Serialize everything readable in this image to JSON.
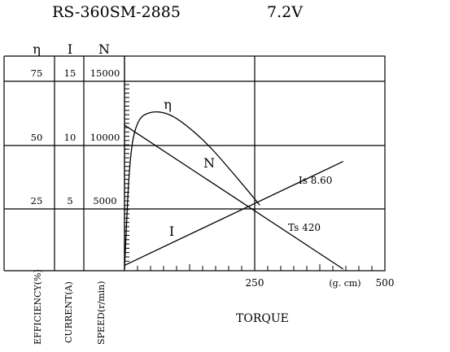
{
  "header": {
    "title": "RS-360SM-2885",
    "voltage": "7.2V"
  },
  "chart_data": {
    "type": "line",
    "title": "RS-360SM-2885",
    "subtitle": "7.2V",
    "xlabel": "TORQUE",
    "x_unit": "(g. cm)",
    "xlim": [
      0,
      500
    ],
    "x_ticks": [
      "250",
      "500"
    ],
    "y_axes": [
      {
        "symbol": "η",
        "label": "EFFICIENCY(%)",
        "ticks": [
          "75",
          "50",
          "25"
        ],
        "max": 75
      },
      {
        "symbol": "I",
        "label": "CURRENT(A)",
        "ticks": [
          "15",
          "10",
          "5"
        ],
        "max": 15
      },
      {
        "symbol": "N",
        "label": "SPEED(r/min)",
        "ticks": [
          "15000",
          "10000",
          "5000"
        ],
        "max": 15000
      }
    ],
    "grid": true,
    "series": [
      {
        "name": "η",
        "axis": "η",
        "x": [
          0,
          10,
          25,
          50,
          80,
          110,
          160,
          210,
          260
        ],
        "y": [
          0,
          46,
          60,
          63,
          62.5,
          59,
          50,
          38,
          25.5
        ]
      },
      {
        "name": "N",
        "axis": "N",
        "x": [
          0,
          420
        ],
        "y": [
          11500,
          0
        ]
      },
      {
        "name": "I",
        "axis": "I",
        "x": [
          0,
          420
        ],
        "y": [
          0.3,
          8.6
        ]
      }
    ],
    "annotations": [
      {
        "text": "Is 8.60",
        "x": 420,
        "y": 8.6,
        "axis": "I"
      },
      {
        "text": "Ts 420",
        "x": 420,
        "y": 0,
        "axis": "I"
      }
    ]
  }
}
